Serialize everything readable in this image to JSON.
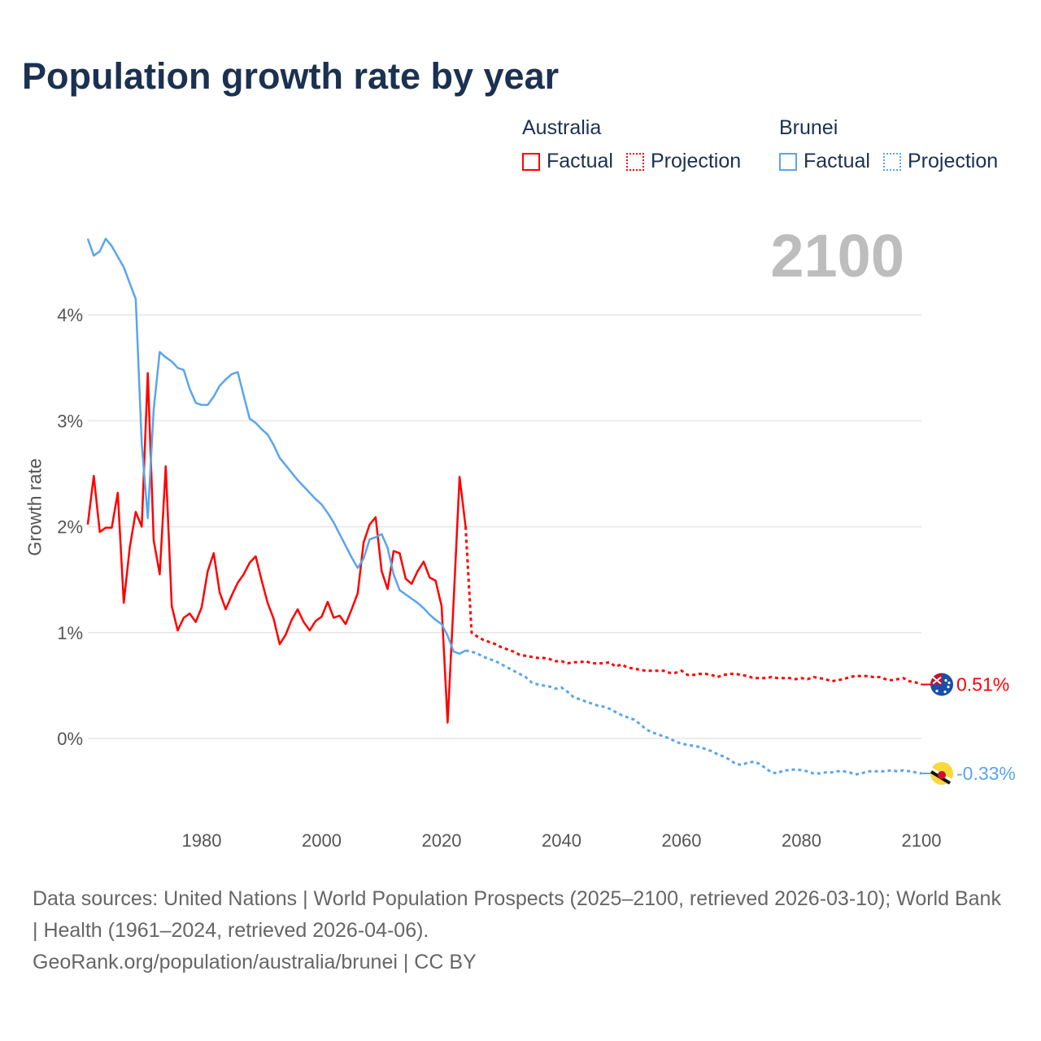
{
  "chart_data": {
    "type": "line",
    "title": "Population growth rate by year",
    "xlabel": "",
    "ylabel": "Growth rate",
    "xlim": [
      1961,
      2100
    ],
    "ylim": [
      -0.75,
      4.8
    ],
    "x_ticks": [
      1980,
      2000,
      2020,
      2040,
      2060,
      2080,
      2100
    ],
    "x_tick_labels": [
      "1980",
      "2000",
      "2020",
      "2040",
      "2060",
      "2080",
      "2100"
    ],
    "y_ticks": [
      0,
      1,
      2,
      3,
      4
    ],
    "y_tick_labels": [
      "0%",
      "1%",
      "2%",
      "3%",
      "4%"
    ],
    "grid": true,
    "current_year_label": "2100",
    "legend": {
      "placement": "top-right",
      "groups": [
        {
          "name": "Australia",
          "factual": "Factual",
          "projection": "Projection"
        },
        {
          "name": "Brunei",
          "factual": "Factual",
          "projection": "Projection"
        }
      ]
    },
    "series": [
      {
        "name": "Australia",
        "color": "#ff0000",
        "end_label": "0.51%",
        "flag": "australia-flag",
        "factual_start": 1961,
        "factual": [
          2.02,
          2.48,
          1.95,
          1.99,
          1.99,
          2.32,
          1.28,
          1.8,
          2.14,
          2.0,
          3.45,
          1.87,
          1.55,
          2.57,
          1.25,
          1.02,
          1.14,
          1.18,
          1.1,
          1.24,
          1.58,
          1.75,
          1.38,
          1.22,
          1.35,
          1.47,
          1.55,
          1.66,
          1.72,
          1.49,
          1.28,
          1.13,
          0.89,
          0.98,
          1.12,
          1.22,
          1.1,
          1.02,
          1.11,
          1.15,
          1.29,
          1.14,
          1.16,
          1.08,
          1.22,
          1.37,
          1.85,
          2.02,
          2.09,
          1.58,
          1.41,
          1.77,
          1.75,
          1.51,
          1.46,
          1.58,
          1.67,
          1.52,
          1.49,
          1.25,
          0.15,
          1.3,
          2.47,
          2.0
        ],
        "projection_start": 2025,
        "projection": [
          1.0,
          0.96,
          0.93,
          0.91,
          0.89,
          0.86,
          0.84,
          0.82,
          0.79,
          0.78,
          0.77,
          0.76,
          0.76,
          0.75,
          0.73,
          0.73,
          0.71,
          0.72,
          0.72,
          0.73,
          0.71,
          0.71,
          0.71,
          0.72,
          0.68,
          0.7,
          0.67,
          0.66,
          0.65,
          0.64,
          0.64,
          0.64,
          0.64,
          0.62,
          0.62,
          0.64,
          0.6,
          0.6,
          0.61,
          0.61,
          0.6,
          0.58,
          0.6,
          0.61,
          0.61,
          0.6,
          0.59,
          0.57,
          0.57,
          0.57,
          0.58,
          0.57,
          0.57,
          0.57,
          0.56,
          0.57,
          0.56,
          0.58,
          0.57,
          0.56,
          0.54,
          0.55,
          0.56,
          0.58,
          0.59,
          0.59,
          0.59,
          0.58,
          0.58,
          0.56,
          0.55,
          0.56,
          0.57,
          0.54,
          0.53,
          0.51
        ]
      },
      {
        "name": "Brunei",
        "color": "#5aa5ec",
        "end_label": "-0.33%",
        "flag": "brunei-flag",
        "factual_start": 1961,
        "factual": [
          4.72,
          4.56,
          4.6,
          4.72,
          4.65,
          4.55,
          4.45,
          4.3,
          4.15,
          2.78,
          2.08,
          3.11,
          3.65,
          3.6,
          3.56,
          3.5,
          3.48,
          3.3,
          3.17,
          3.15,
          3.15,
          3.23,
          3.33,
          3.39,
          3.44,
          3.46,
          3.24,
          3.02,
          2.98,
          2.92,
          2.87,
          2.77,
          2.65,
          2.58,
          2.51,
          2.44,
          2.38,
          2.32,
          2.26,
          2.21,
          2.13,
          2.04,
          1.93,
          1.82,
          1.71,
          1.61,
          1.7,
          1.88,
          1.9,
          1.93,
          1.8,
          1.55,
          1.4,
          1.36,
          1.32,
          1.28,
          1.23,
          1.17,
          1.12,
          1.08,
          0.97,
          0.82,
          0.8,
          0.83
        ],
        "projection_start": 2025,
        "projection": [
          0.82,
          0.8,
          0.77,
          0.75,
          0.73,
          0.7,
          0.67,
          0.64,
          0.61,
          0.58,
          0.53,
          0.51,
          0.5,
          0.49,
          0.47,
          0.48,
          0.44,
          0.39,
          0.37,
          0.35,
          0.33,
          0.31,
          0.3,
          0.28,
          0.25,
          0.22,
          0.2,
          0.18,
          0.14,
          0.09,
          0.06,
          0.04,
          0.02,
          0.0,
          -0.03,
          -0.05,
          -0.06,
          -0.07,
          -0.08,
          -0.1,
          -0.12,
          -0.15,
          -0.17,
          -0.2,
          -0.24,
          -0.25,
          -0.23,
          -0.22,
          -0.24,
          -0.28,
          -0.32,
          -0.33,
          -0.3,
          -0.3,
          -0.29,
          -0.3,
          -0.31,
          -0.33,
          -0.33,
          -0.32,
          -0.32,
          -0.31,
          -0.31,
          -0.32,
          -0.34,
          -0.33,
          -0.31,
          -0.31,
          -0.31,
          -0.31,
          -0.3,
          -0.31,
          -0.3,
          -0.31,
          -0.32,
          -0.33
        ]
      }
    ]
  },
  "footer": {
    "sources": "Data sources: United Nations | World Population Prospects (2025–2100, retrieved 2026-03-10); World Bank | Health (1961–2024, retrieved 2026-04-06).",
    "credit": "GeoRank.org/population/australia/brunei | CC BY"
  }
}
